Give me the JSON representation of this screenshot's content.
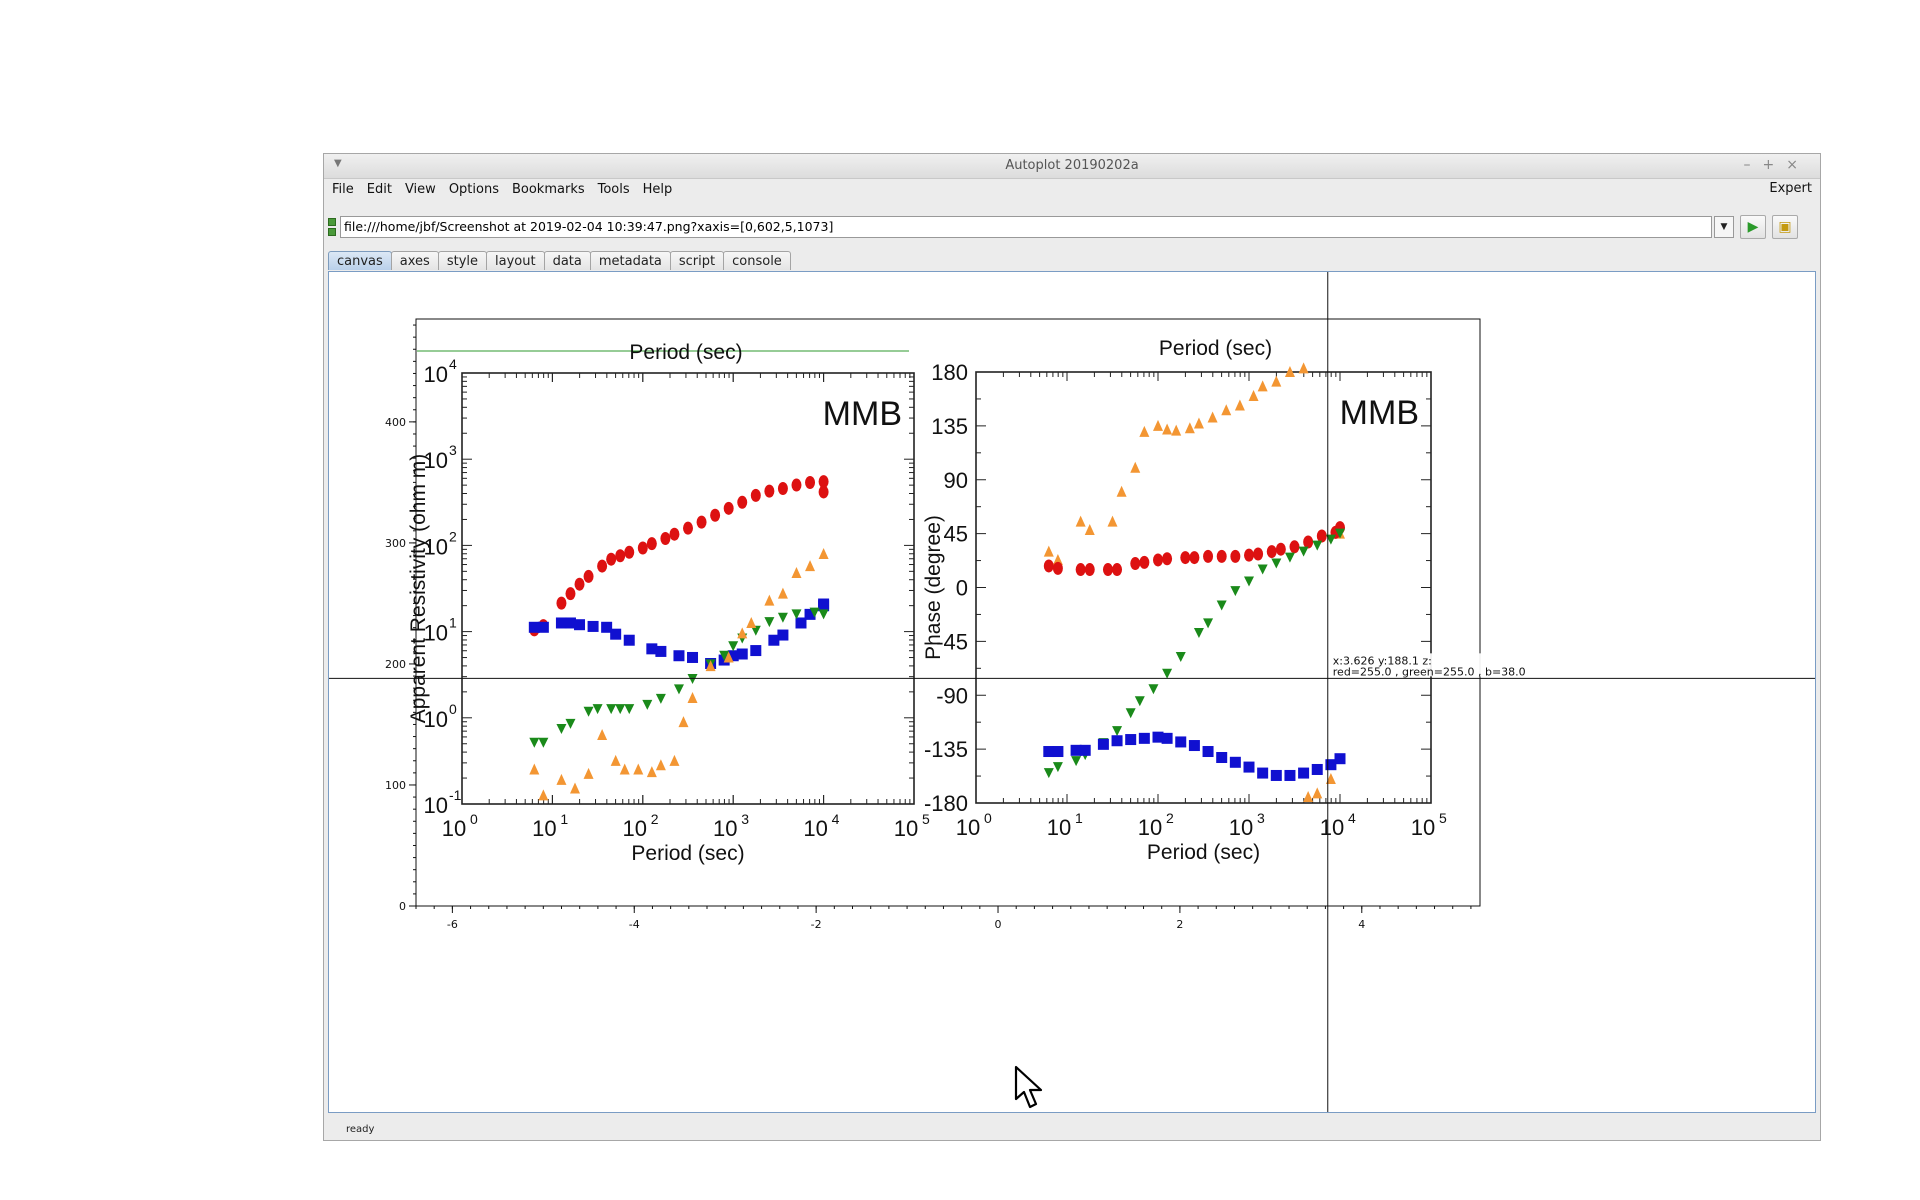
{
  "window": {
    "title": "Autoplot 20190202a",
    "controls": [
      "–",
      "+",
      "×"
    ]
  },
  "menubar": {
    "items": [
      "File",
      "Edit",
      "View",
      "Options",
      "Bookmarks",
      "Tools",
      "Help"
    ],
    "expert_label": "Expert"
  },
  "url": {
    "value": "file:///home/jbf/Screenshot at 2019-02-04 10:39:47.png?xaxis=[0,602,5,1073]",
    "dropdown_icon": "chevron-down-icon",
    "plot_icon": "play-triangle-icon",
    "bookmark_icon": "folder-bookmark-icon"
  },
  "tabs": [
    {
      "label": "canvas",
      "selected": true
    },
    {
      "label": "axes",
      "selected": false
    },
    {
      "label": "style",
      "selected": false
    },
    {
      "label": "layout",
      "selected": false
    },
    {
      "label": "data",
      "selected": false
    },
    {
      "label": "metadata",
      "selected": false
    },
    {
      "label": "script",
      "selected": false
    },
    {
      "label": "console",
      "selected": false
    }
  ],
  "status": {
    "text": "ready"
  },
  "plot": {
    "xticks": [
      "-6",
      "-4",
      "-2",
      "0",
      "2",
      "4"
    ],
    "yticks": [
      "0",
      "100",
      "200",
      "300",
      "400"
    ],
    "xlim": [
      -6.4,
      5.3
    ],
    "ylim": [
      0,
      485
    ],
    "crosshair": {
      "x": 3.626,
      "y": 188.1
    },
    "readout_line1": "x:3.626  y:188.1  z:",
    "readout_line2": "red=255.0 , green=255.0 , b=38.0"
  },
  "image": {
    "left_panel": {
      "label": "MMB",
      "top_title": "Period (sec)",
      "xlabel": "Period (sec)",
      "ylabel": "Apparent Resistivity (ohm m)",
      "xticks": [
        "10",
        "10",
        "10",
        "10",
        "10",
        "10"
      ],
      "xexps": [
        "0",
        "1",
        "2",
        "3",
        "4",
        "5"
      ],
      "yticks": [
        "10",
        "10",
        "10",
        "10",
        "10",
        "10"
      ],
      "yexps": [
        "-1",
        "0",
        "1",
        "2",
        "3",
        "4"
      ]
    },
    "right_panel": {
      "label": "MMB",
      "top_title": "Period (sec)",
      "xlabel": "Period (sec)",
      "ylabel": "Phase (degree)",
      "xticks": [
        "10",
        "10",
        "10",
        "10",
        "10",
        "10"
      ],
      "xexps": [
        "0",
        "1",
        "2",
        "3",
        "4",
        "5"
      ],
      "yticks": [
        "180",
        "135",
        "90",
        "45",
        "0",
        "-45",
        "-90",
        "-135",
        "-180"
      ]
    },
    "colors": {
      "red": "#dd1111",
      "orange": "#f39633",
      "green": "#1a8a1a",
      "blue": "#1010d0"
    },
    "left_series": [
      {
        "name": "red",
        "points": [
          [
            0.8,
            1.02
          ],
          [
            0.9,
            1.07
          ],
          [
            1.1,
            1.33
          ],
          [
            1.2,
            1.44
          ],
          [
            1.3,
            1.55
          ],
          [
            1.4,
            1.64
          ],
          [
            1.55,
            1.76
          ],
          [
            1.65,
            1.84
          ],
          [
            1.75,
            1.88
          ],
          [
            1.85,
            1.92
          ],
          [
            2.0,
            1.97
          ],
          [
            2.1,
            2.02
          ],
          [
            2.25,
            2.08
          ],
          [
            2.35,
            2.13
          ],
          [
            2.5,
            2.2
          ],
          [
            2.65,
            2.27
          ],
          [
            2.8,
            2.35
          ],
          [
            2.95,
            2.43
          ],
          [
            3.1,
            2.5
          ],
          [
            3.25,
            2.58
          ],
          [
            3.4,
            2.63
          ],
          [
            3.55,
            2.66
          ],
          [
            3.7,
            2.7
          ],
          [
            3.85,
            2.73
          ],
          [
            4.0,
            2.74
          ],
          [
            4.0,
            2.62
          ]
        ]
      },
      {
        "name": "blue",
        "points": [
          [
            0.8,
            1.05
          ],
          [
            0.9,
            1.05
          ],
          [
            1.1,
            1.1
          ],
          [
            1.2,
            1.1
          ],
          [
            1.3,
            1.08
          ],
          [
            1.45,
            1.06
          ],
          [
            1.6,
            1.05
          ],
          [
            1.7,
            0.97
          ],
          [
            1.85,
            0.9
          ],
          [
            2.1,
            0.8
          ],
          [
            2.2,
            0.77
          ],
          [
            2.4,
            0.72
          ],
          [
            2.55,
            0.7
          ],
          [
            2.75,
            0.63
          ],
          [
            2.9,
            0.67
          ],
          [
            3.0,
            0.72
          ],
          [
            3.1,
            0.74
          ],
          [
            3.25,
            0.78
          ],
          [
            3.45,
            0.9
          ],
          [
            3.55,
            0.96
          ],
          [
            3.75,
            1.1
          ],
          [
            3.85,
            1.2
          ],
          [
            4.0,
            1.3
          ],
          [
            4.0,
            1.32
          ]
        ]
      },
      {
        "name": "green",
        "points": [
          [
            0.8,
            -0.29
          ],
          [
            0.9,
            -0.29
          ],
          [
            1.1,
            -0.13
          ],
          [
            1.2,
            -0.07
          ],
          [
            1.4,
            0.07
          ],
          [
            1.5,
            0.1
          ],
          [
            1.65,
            0.1
          ],
          [
            1.75,
            0.1
          ],
          [
            1.85,
            0.1
          ],
          [
            2.05,
            0.15
          ],
          [
            2.2,
            0.22
          ],
          [
            2.4,
            0.33
          ],
          [
            2.55,
            0.45
          ],
          [
            2.75,
            0.62
          ],
          [
            2.9,
            0.72
          ],
          [
            3.0,
            0.83
          ],
          [
            3.1,
            0.92
          ],
          [
            3.25,
            1.01
          ],
          [
            3.4,
            1.11
          ],
          [
            3.55,
            1.16
          ],
          [
            3.7,
            1.2
          ],
          [
            3.9,
            1.22
          ],
          [
            4.0,
            1.2
          ]
        ]
      },
      {
        "name": "orange",
        "points": [
          [
            0.8,
            -0.6
          ],
          [
            0.9,
            -0.9
          ],
          [
            1.1,
            -0.72
          ],
          [
            1.25,
            -0.82
          ],
          [
            1.4,
            -0.65
          ],
          [
            1.55,
            -0.2
          ],
          [
            1.7,
            -0.5
          ],
          [
            1.8,
            -0.6
          ],
          [
            1.95,
            -0.6
          ],
          [
            2.1,
            -0.63
          ],
          [
            2.2,
            -0.55
          ],
          [
            2.35,
            -0.5
          ],
          [
            2.45,
            -0.05
          ],
          [
            2.55,
            0.23
          ],
          [
            2.75,
            0.6
          ],
          [
            2.95,
            0.7
          ],
          [
            3.1,
            0.98
          ],
          [
            3.2,
            1.1
          ],
          [
            3.4,
            1.36
          ],
          [
            3.55,
            1.44
          ],
          [
            3.7,
            1.68
          ],
          [
            3.85,
            1.76
          ],
          [
            4.0,
            1.9
          ]
        ]
      }
    ],
    "right_series": [
      {
        "name": "orange",
        "points": [
          [
            0.8,
            30
          ],
          [
            0.9,
            23
          ],
          [
            1.15,
            55
          ],
          [
            1.25,
            48
          ],
          [
            1.5,
            55
          ],
          [
            1.6,
            80
          ],
          [
            1.75,
            100
          ],
          [
            1.85,
            130
          ],
          [
            2.0,
            135
          ],
          [
            2.1,
            132
          ],
          [
            2.2,
            131
          ],
          [
            2.35,
            133
          ],
          [
            2.45,
            137
          ],
          [
            2.6,
            142
          ],
          [
            2.75,
            148
          ],
          [
            2.9,
            152
          ],
          [
            3.05,
            160
          ],
          [
            3.15,
            168
          ],
          [
            3.3,
            172
          ],
          [
            3.45,
            180
          ],
          [
            3.6,
            183
          ],
          [
            4.0,
            45
          ],
          [
            3.65,
            -175
          ],
          [
            3.75,
            -172
          ],
          [
            3.9,
            -160
          ]
        ]
      },
      {
        "name": "red",
        "points": [
          [
            0.8,
            18
          ],
          [
            0.9,
            16
          ],
          [
            1.15,
            15
          ],
          [
            1.25,
            15
          ],
          [
            1.45,
            15
          ],
          [
            1.55,
            15
          ],
          [
            1.75,
            20
          ],
          [
            1.85,
            21
          ],
          [
            2.0,
            23
          ],
          [
            2.1,
            24
          ],
          [
            2.3,
            25
          ],
          [
            2.4,
            25
          ],
          [
            2.55,
            26
          ],
          [
            2.7,
            26
          ],
          [
            2.85,
            26
          ],
          [
            3.0,
            27
          ],
          [
            3.1,
            28
          ],
          [
            3.25,
            30
          ],
          [
            3.35,
            32
          ],
          [
            3.5,
            34
          ],
          [
            3.65,
            38
          ],
          [
            3.8,
            43
          ],
          [
            3.95,
            46
          ],
          [
            4.0,
            50
          ]
        ]
      },
      {
        "name": "green",
        "points": [
          [
            0.8,
            -155
          ],
          [
            0.9,
            -150
          ],
          [
            1.1,
            -145
          ],
          [
            1.2,
            -140
          ],
          [
            1.4,
            -130
          ],
          [
            1.55,
            -120
          ],
          [
            1.7,
            -105
          ],
          [
            1.8,
            -95
          ],
          [
            1.95,
            -85
          ],
          [
            2.1,
            -72
          ],
          [
            2.25,
            -58
          ],
          [
            2.45,
            -38
          ],
          [
            2.55,
            -30
          ],
          [
            2.7,
            -15
          ],
          [
            2.85,
            -3
          ],
          [
            3.0,
            5
          ],
          [
            3.15,
            15
          ],
          [
            3.3,
            20
          ],
          [
            3.45,
            25
          ],
          [
            3.6,
            30
          ],
          [
            3.75,
            35
          ],
          [
            3.9,
            40
          ],
          [
            4.0,
            45
          ]
        ]
      },
      {
        "name": "blue",
        "points": [
          [
            0.8,
            -137
          ],
          [
            0.9,
            -137
          ],
          [
            1.1,
            -136
          ],
          [
            1.2,
            -136
          ],
          [
            1.4,
            -131
          ],
          [
            1.55,
            -128
          ],
          [
            1.7,
            -127
          ],
          [
            1.85,
            -126
          ],
          [
            2.0,
            -125
          ],
          [
            2.1,
            -126
          ],
          [
            2.25,
            -129
          ],
          [
            2.4,
            -132
          ],
          [
            2.55,
            -137
          ],
          [
            2.7,
            -142
          ],
          [
            2.85,
            -146
          ],
          [
            3.0,
            -150
          ],
          [
            3.15,
            -155
          ],
          [
            3.3,
            -157
          ],
          [
            3.45,
            -157
          ],
          [
            3.6,
            -155
          ],
          [
            3.75,
            -152
          ],
          [
            3.9,
            -148
          ],
          [
            4.0,
            -143
          ]
        ]
      }
    ]
  }
}
